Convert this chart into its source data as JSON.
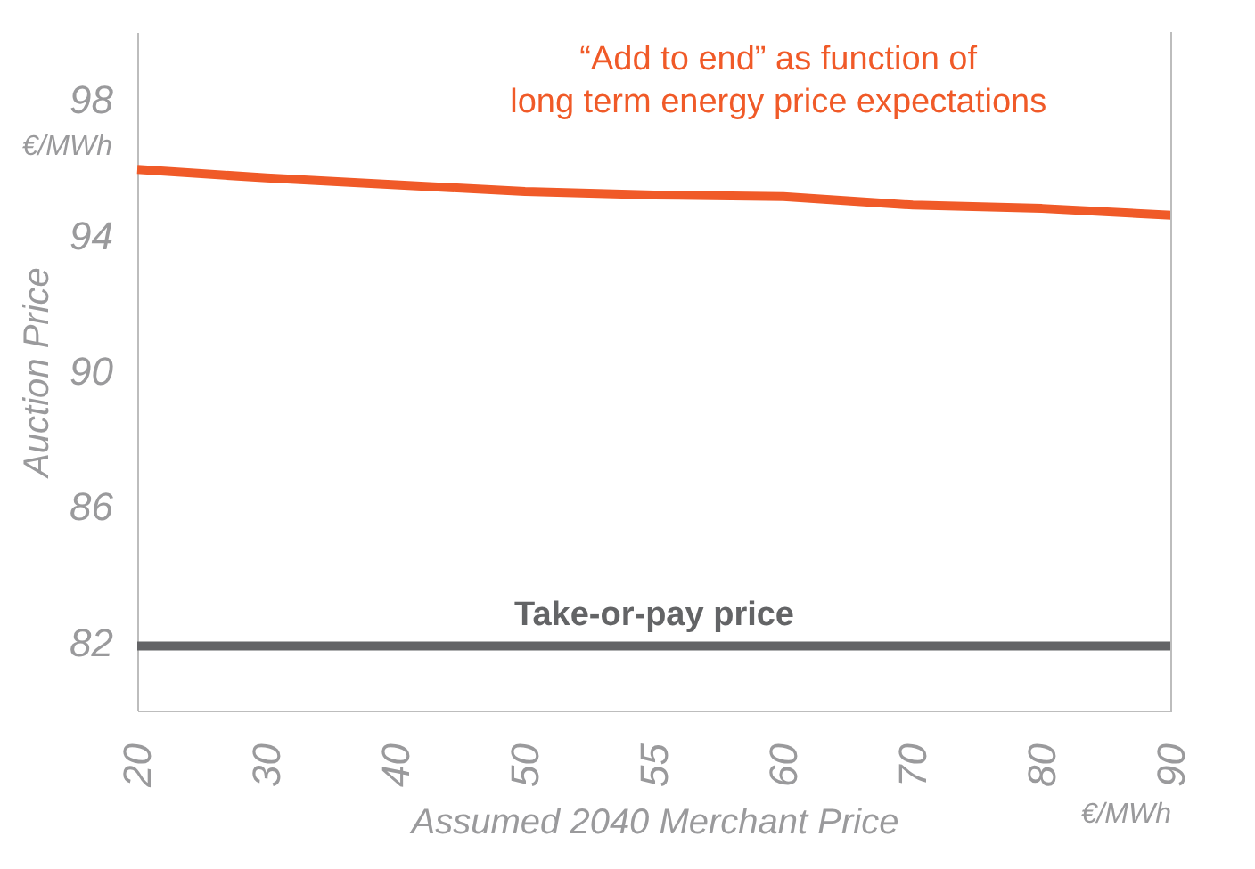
{
  "chart_data": {
    "type": "line",
    "categories": [
      "20",
      "30",
      "40",
      "50",
      "55",
      "60",
      "70",
      "80",
      "90"
    ],
    "xlabel": "Assumed 2040 Merchant Price",
    "ylabel": "Auction Price",
    "ylim": [
      80,
      100
    ],
    "yticks": [
      82,
      86,
      90,
      94,
      98
    ],
    "series": [
      {
        "name": "“Add to end” as function of long term energy price expectations",
        "color": "#f05a28",
        "values": [
          95.95,
          95.7,
          95.5,
          95.3,
          95.2,
          95.15,
          94.9,
          94.8,
          94.6
        ]
      },
      {
        "name": "Take-or-pay price",
        "color": "#636466",
        "values": [
          81.9,
          81.9,
          81.9,
          81.9,
          81.9,
          81.9,
          81.9,
          81.9,
          81.9
        ]
      }
    ],
    "annotations": [
      "€/MWh",
      "€/MWh"
    ],
    "grid": false,
    "legend": false,
    "line_style": "solid",
    "marker": "none"
  }
}
